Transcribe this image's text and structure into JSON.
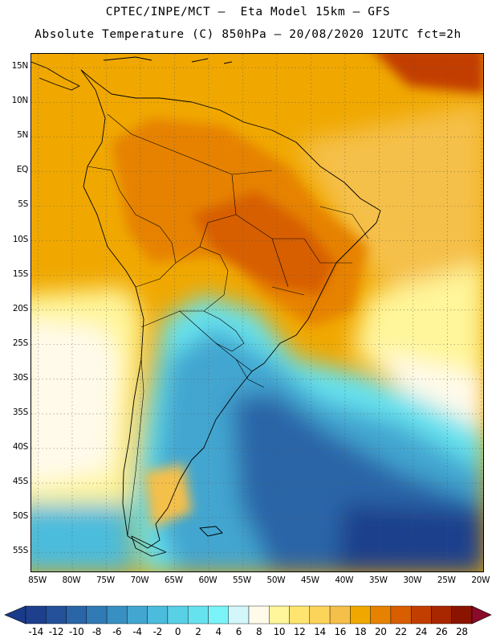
{
  "title_line1": "CPTEC/INPE/MCT –  Eta Model 15km – GFS",
  "title_line2": "Absolute Temperature (C) 850hPa – 20/08/2020 12UTC fct=2h",
  "map": {
    "lon_range": [
      -86,
      -19.5
    ],
    "lat_range": [
      17,
      -58
    ],
    "lat_ticks": [
      {
        "value": 15,
        "label": "15N"
      },
      {
        "value": 10,
        "label": "10N"
      },
      {
        "value": 5,
        "label": "5N"
      },
      {
        "value": 0,
        "label": "EQ"
      },
      {
        "value": -5,
        "label": "5S"
      },
      {
        "value": -10,
        "label": "10S"
      },
      {
        "value": -15,
        "label": "15S"
      },
      {
        "value": -20,
        "label": "20S"
      },
      {
        "value": -25,
        "label": "25S"
      },
      {
        "value": -30,
        "label": "30S"
      },
      {
        "value": -35,
        "label": "35S"
      },
      {
        "value": -40,
        "label": "40S"
      },
      {
        "value": -45,
        "label": "45S"
      },
      {
        "value": -50,
        "label": "50S"
      },
      {
        "value": -55,
        "label": "55S"
      }
    ],
    "lon_ticks": [
      {
        "value": -85,
        "label": "85W"
      },
      {
        "value": -80,
        "label": "80W"
      },
      {
        "value": -75,
        "label": "75W"
      },
      {
        "value": -70,
        "label": "70W"
      },
      {
        "value": -65,
        "label": "65W"
      },
      {
        "value": -60,
        "label": "60W"
      },
      {
        "value": -55,
        "label": "55W"
      },
      {
        "value": -50,
        "label": "50W"
      },
      {
        "value": -45,
        "label": "45W"
      },
      {
        "value": -40,
        "label": "40W"
      },
      {
        "value": -35,
        "label": "35W"
      },
      {
        "value": -30,
        "label": "30W"
      },
      {
        "value": -25,
        "label": "25W"
      },
      {
        "value": -20,
        "label": "20W"
      }
    ]
  },
  "colorbar": {
    "labels": [
      "-14",
      "-12",
      "-10",
      "-8",
      "-6",
      "-4",
      "-2",
      "0",
      "2",
      "4",
      "6",
      "8",
      "10",
      "12",
      "14",
      "16",
      "18",
      "20",
      "22",
      "24",
      "26",
      "28"
    ],
    "under_color": "#1a3a8a",
    "over_color": "#8a0a28",
    "colors": [
      "#1e3f8c",
      "#24519a",
      "#2a65a8",
      "#307ab6",
      "#3890c2",
      "#42a6d0",
      "#4cbcdc",
      "#58d0e6",
      "#66e2ee",
      "#7af4f8",
      "#d2f6fa",
      "#fffaea",
      "#fff59a",
      "#ffe570",
      "#fcd45a",
      "#f5c04a",
      "#f0a800",
      "#e68200",
      "#d85e00",
      "#c23e00",
      "#a82600",
      "#8a1400"
    ]
  }
}
